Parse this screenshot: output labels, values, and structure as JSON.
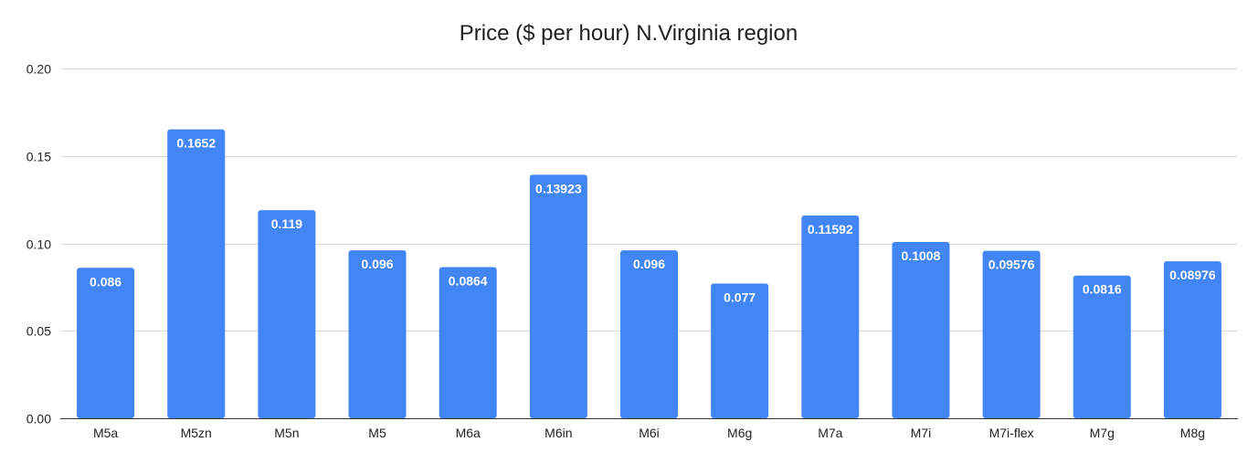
{
  "chart_data": {
    "type": "bar",
    "title": "Price ($ per hour) N.Virginia region",
    "xlabel": "",
    "ylabel": "",
    "categories": [
      "M5a",
      "M5zn",
      "M5n",
      "M5",
      "M6a",
      "M6in",
      "M6i",
      "M6g",
      "M7a",
      "M7i",
      "M7i-flex",
      "M7g",
      "M8g"
    ],
    "values": [
      0.086,
      0.1652,
      0.119,
      0.096,
      0.0864,
      0.13923,
      0.096,
      0.077,
      0.11592,
      0.1008,
      0.09576,
      0.0816,
      0.08976
    ],
    "data_labels": [
      "0.086",
      "0.1652",
      "0.119",
      "0.096",
      "0.0864",
      "0.13923",
      "0.096",
      "0.077",
      "0.11592",
      "0.1008",
      "0.09576",
      "0.0816",
      "0.08976"
    ],
    "ylim": [
      0,
      0.2
    ],
    "yticks": [
      0,
      0.05,
      0.1,
      0.15,
      0.2
    ],
    "ytick_labels": [
      "0.00",
      "0.05",
      "0.10",
      "0.15",
      "0.20"
    ],
    "grid": true,
    "legend": "none",
    "bar_color": "#4285f4"
  }
}
